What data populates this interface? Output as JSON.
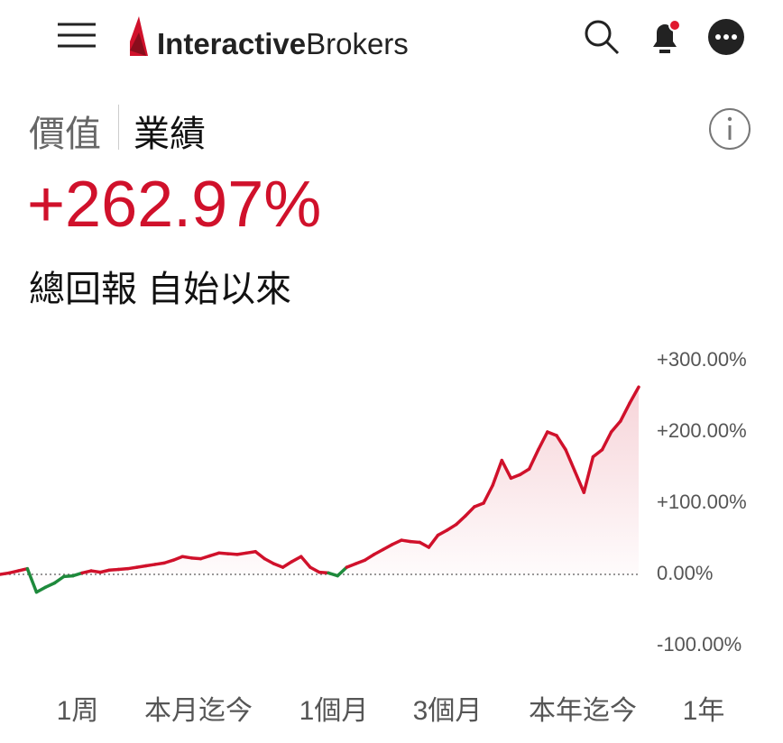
{
  "header": {
    "logo_bold": "Interactive",
    "logo_regular": "Brokers"
  },
  "tabs": [
    "價值",
    "業績"
  ],
  "headline": "+262.97%",
  "subtitle": "總回報 自始以來",
  "chart_data": {
    "type": "line",
    "series": [
      {
        "name": null,
        "color": "#d0112b",
        "negative_color": "#1e8a3c",
        "values": [
          0,
          2,
          5,
          8,
          -25,
          -18,
          -12,
          -3,
          -2,
          2,
          5,
          3,
          6,
          7,
          8,
          10,
          12,
          14,
          16,
          20,
          25,
          23,
          22,
          26,
          30,
          29,
          28,
          30,
          32,
          22,
          15,
          10,
          18,
          25,
          10,
          3,
          2,
          -2,
          10,
          15,
          20,
          28,
          35,
          42,
          48,
          46,
          45,
          38,
          55,
          62,
          70,
          82,
          95,
          100,
          125,
          160,
          135,
          140,
          148,
          175,
          200,
          195,
          175,
          145,
          115,
          165,
          175,
          200,
          215,
          240,
          262.97
        ]
      }
    ],
    "ylim": [
      -100,
      300
    ],
    "yticks": [
      {
        "value": 300,
        "label": "+300.00%"
      },
      {
        "value": 200,
        "label": "+200.00%"
      },
      {
        "value": 100,
        "label": "+100.00%"
      },
      {
        "value": 0,
        "label": "0.00%"
      },
      {
        "value": -100,
        "label": "-100.00%"
      }
    ],
    "area": true,
    "periods": [
      "1周",
      "本月迄今",
      "1個月",
      "3個月",
      "本年迄今",
      "1年"
    ]
  }
}
